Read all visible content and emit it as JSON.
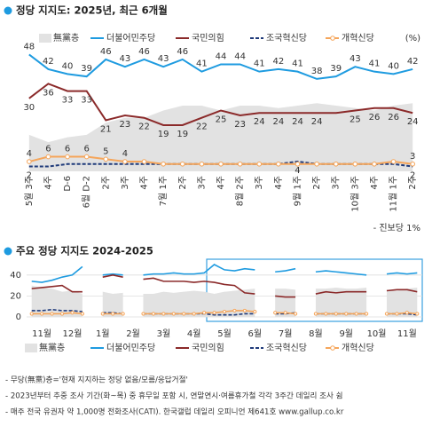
{
  "charts": [
    {
      "type": "line",
      "title": "정당 지지도: 2025년, 최근 6개월",
      "unit_note": "(%)",
      "categories": [
        "5월 3주",
        "4주",
        "D-6",
        "6월 D-2",
        "2주",
        "3주",
        "4주",
        "7월 1주",
        "2주",
        "3주",
        "4주",
        "8월 2주",
        "3주",
        "4주",
        "9월 1주",
        "2주",
        "3주",
        "10월 3주",
        "4주",
        "11월 1주",
        "2주"
      ],
      "ylim": [
        0,
        50
      ],
      "series": [
        {
          "name": "無黨층",
          "kind": "area",
          "color": "#e2e2e2",
          "values": [
            15,
            12,
            14,
            15,
            20,
            22,
            22,
            25,
            27,
            27,
            25,
            27,
            27,
            26,
            27,
            28,
            27,
            26,
            25,
            27,
            28
          ]
        },
        {
          "name": "더불어민주당",
          "kind": "line",
          "color": "#1e9be0",
          "label_side": "above",
          "values": [
            48,
            42,
            40,
            39,
            46,
            43,
            46,
            43,
            46,
            41,
            44,
            44,
            41,
            42,
            41,
            38,
            39,
            43,
            41,
            40,
            42
          ],
          "value_labels": [
            "48",
            "42",
            "40",
            "39",
            "46",
            "43",
            "46",
            "43",
            "46",
            "41",
            "44",
            "44",
            "41",
            "42",
            "41",
            "38",
            "39",
            "43",
            "41",
            "40",
            "42"
          ]
        },
        {
          "name": "국민의힘",
          "kind": "line",
          "color": "#8b2a2a",
          "label_side": "below",
          "values": [
            30,
            36,
            33,
            33,
            21,
            23,
            22,
            19,
            19,
            22,
            25,
            23,
            24,
            24,
            24,
            24,
            24,
            25,
            26,
            26,
            24
          ],
          "value_labels": [
            "30",
            "36",
            "33",
            "33",
            "21",
            "23",
            "22",
            "19",
            "19",
            "22",
            "25",
            "23",
            "24",
            "24",
            "24",
            "24",
            null,
            "25",
            "26",
            "26",
            "24"
          ]
        },
        {
          "name": "조국혁신당",
          "kind": "line",
          "dash": true,
          "color": "#1f3a7a",
          "label_side": "below",
          "values": [
            2,
            2,
            3,
            3,
            3,
            3,
            3,
            3,
            3,
            3,
            3,
            3,
            3,
            3,
            4,
            3,
            3,
            3,
            3,
            3,
            2
          ],
          "value_labels": [
            "2",
            null,
            null,
            null,
            null,
            null,
            null,
            null,
            null,
            null,
            null,
            null,
            null,
            null,
            "4",
            null,
            null,
            null,
            null,
            null,
            "2"
          ]
        },
        {
          "name": "개혁신당",
          "kind": "line",
          "markers": true,
          "color": "#f5a55a",
          "label_side": "above",
          "values": [
            4,
            6,
            6,
            6,
            5,
            4,
            4,
            3,
            3,
            3,
            3,
            3,
            3,
            3,
            3,
            3,
            3,
            3,
            3,
            4,
            3
          ],
          "value_labels": [
            "4",
            "6",
            "6",
            "6",
            "5",
            "4",
            null,
            null,
            null,
            null,
            null,
            null,
            null,
            null,
            null,
            null,
            null,
            null,
            null,
            null,
            "3"
          ]
        }
      ],
      "note": "- 진보당 1%"
    },
    {
      "type": "line",
      "title": "주요 정당 지지도 2024-2025",
      "categories": [
        null,
        "11월",
        null,
        null,
        "12월",
        null,
        null,
        "1월",
        null,
        null,
        "2월",
        null,
        null,
        "3월",
        null,
        null,
        "4월",
        null,
        null,
        "5월",
        null,
        null,
        "6월",
        null,
        null,
        "7월",
        null,
        null,
        "8월",
        null,
        null,
        "9월",
        null,
        null,
        "10월",
        null,
        null,
        "11월",
        null
      ],
      "ylim": [
        0,
        50
      ],
      "yticks": [
        0,
        20,
        40
      ],
      "grid": true,
      "series": [
        {
          "name": "無黨층",
          "kind": "area",
          "color": "#e2e2e2",
          "values": [
            30,
            28,
            27,
            24,
            25,
            22,
            null,
            24,
            22,
            23,
            null,
            22,
            22,
            24,
            23,
            24,
            25,
            24,
            22,
            24,
            25,
            26,
            27,
            null,
            27,
            27,
            26,
            null,
            27,
            27,
            28,
            27,
            27,
            28,
            null,
            26,
            25,
            27,
            28
          ]
        },
        {
          "name": "더불어민주당",
          "kind": "line",
          "color": "#1e9be0",
          "values": [
            34,
            33,
            35,
            38,
            40,
            48,
            null,
            40,
            41,
            40,
            null,
            40,
            41,
            41,
            42,
            41,
            41,
            42,
            50,
            45,
            44,
            46,
            45,
            null,
            43,
            44,
            46,
            null,
            43,
            44,
            43,
            42,
            41,
            40,
            null,
            41,
            42,
            41,
            42
          ]
        },
        {
          "name": "국민의힘",
          "kind": "line",
          "color": "#8b2a2a",
          "values": [
            27,
            28,
            29,
            30,
            24,
            24,
            null,
            38,
            40,
            38,
            null,
            36,
            37,
            34,
            34,
            34,
            33,
            34,
            33,
            31,
            30,
            23,
            22,
            null,
            20,
            19,
            19,
            null,
            22,
            24,
            23,
            24,
            24,
            24,
            null,
            25,
            26,
            26,
            24
          ]
        },
        {
          "name": "조국혁신당",
          "kind": "line",
          "dash": true,
          "color": "#1f3a7a",
          "values": [
            6,
            6,
            7,
            6,
            6,
            5,
            null,
            4,
            4,
            3,
            null,
            3,
            3,
            3,
            3,
            3,
            3,
            3,
            2,
            2,
            2,
            3,
            3,
            null,
            3,
            3,
            4,
            null,
            3,
            3,
            3,
            3,
            3,
            3,
            null,
            3,
            3,
            3,
            2
          ]
        },
        {
          "name": "개혁신당",
          "kind": "line",
          "markers": true,
          "color": "#f5a55a",
          "values": [
            3,
            3,
            3,
            3,
            4,
            3,
            null,
            3,
            3,
            3,
            null,
            3,
            3,
            3,
            3,
            3,
            3,
            4,
            4,
            5,
            6,
            6,
            5,
            null,
            4,
            4,
            3,
            null,
            3,
            3,
            3,
            3,
            3,
            3,
            null,
            3,
            3,
            4,
            3
          ]
        }
      ]
    }
  ],
  "footnotes": [
    "- 무당(無黨)층='현재 지지하는 정당 없음/모름/응답거절'",
    "- 2023년부터 추중 조사 기간(화~목) 중 휴무일 포함 시, 연말연시·여름휴가철 각각 3주간 데일리 조사 쉼",
    "- 매주 전국 유권자 약 1,000명 전화조사(CATI). 한국갤럽 데일리 오피니언 제641호 www.gallup.co.kr"
  ]
}
